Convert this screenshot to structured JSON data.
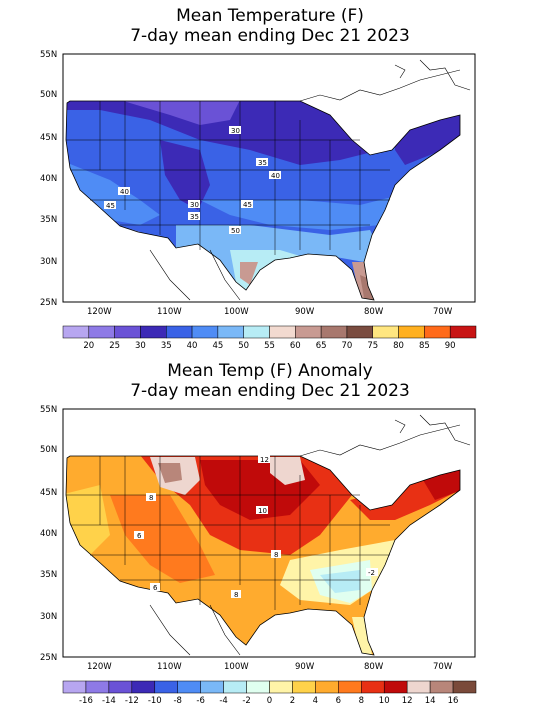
{
  "panels": [
    {
      "title": "Mean Temperature (F)",
      "subtitle": "7-day mean ending Dec 21 2023",
      "lat_labels": [
        "55N",
        "50N",
        "45N",
        "40N",
        "35N",
        "30N",
        "25N"
      ],
      "lon_labels": [
        "120W",
        "110W",
        "100W",
        "90W",
        "80W",
        "70W"
      ],
      "contour_labels": [
        "30",
        "35",
        "40",
        "45",
        "50",
        "40",
        "45",
        "35",
        "30"
      ],
      "legend": {
        "colors": [
          "#b7a6f0",
          "#8e7ae6",
          "#6a52d6",
          "#3c2ab6",
          "#3a62e6",
          "#4f8cf5",
          "#7ab8f7",
          "#b7ecf5",
          "#f2dad0",
          "#c89a92",
          "#a8786e",
          "#7a4c40",
          "#ffe680",
          "#ffb020",
          "#ff6a1a",
          "#c81414"
        ],
        "labels": [
          "20",
          "25",
          "30",
          "35",
          "40",
          "45",
          "50",
          "55",
          "60",
          "65",
          "70",
          "75",
          "80",
          "85",
          "90"
        ]
      }
    },
    {
      "title": "Mean Temp (F) Anomaly",
      "subtitle": "7-day mean ending Dec 21 2023",
      "lat_labels": [
        "55N",
        "50N",
        "45N",
        "40N",
        "35N",
        "30N",
        "25N"
      ],
      "lon_labels": [
        "120W",
        "110W",
        "100W",
        "90W",
        "80W",
        "70W"
      ],
      "contour_labels": [
        "12",
        "8",
        "10",
        "6",
        "8",
        "6",
        "-2",
        "8"
      ],
      "legend": {
        "colors": [
          "#b7a6f0",
          "#8e7ae6",
          "#6a52d6",
          "#3c2ab6",
          "#3a62e6",
          "#4f8cf5",
          "#7ab8f7",
          "#b7ecf5",
          "#e0fff0",
          "#fff4a8",
          "#ffd24a",
          "#ffab2e",
          "#ff7a1e",
          "#e83014",
          "#c00a0a",
          "#eed6cf",
          "#b8867a",
          "#7a4a3a"
        ],
        "labels": [
          "-16",
          "-14",
          "-12",
          "-10",
          "-8",
          "-6",
          "-4",
          "-2",
          "0",
          "2",
          "4",
          "6",
          "8",
          "10",
          "12",
          "14",
          "16"
        ]
      }
    }
  ]
}
